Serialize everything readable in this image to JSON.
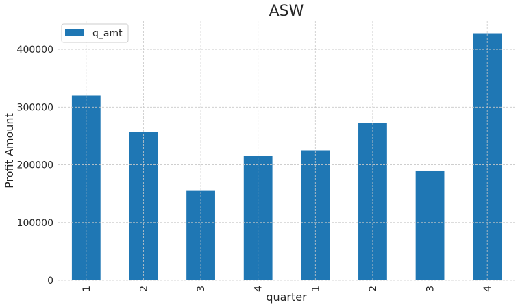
{
  "chart_data": {
    "type": "bar",
    "title": "ASW",
    "xlabel": "quarter",
    "ylabel": "Profit Amount",
    "categories": [
      "1",
      "2",
      "3",
      "4",
      "1",
      "2",
      "3",
      "4"
    ],
    "series": [
      {
        "name": "q_amt",
        "values": [
          320000,
          257000,
          156000,
          215000,
          225000,
          272000,
          190000,
          428000
        ]
      }
    ],
    "ylim": [
      0,
      450000
    ],
    "yticks": [
      0,
      100000,
      200000,
      300000,
      400000
    ],
    "ytick_labels": [
      "0",
      "100000",
      "200000",
      "300000",
      "400000"
    ],
    "grid": true,
    "legend_position": "top-left",
    "bar_color": "#1f77b4"
  }
}
